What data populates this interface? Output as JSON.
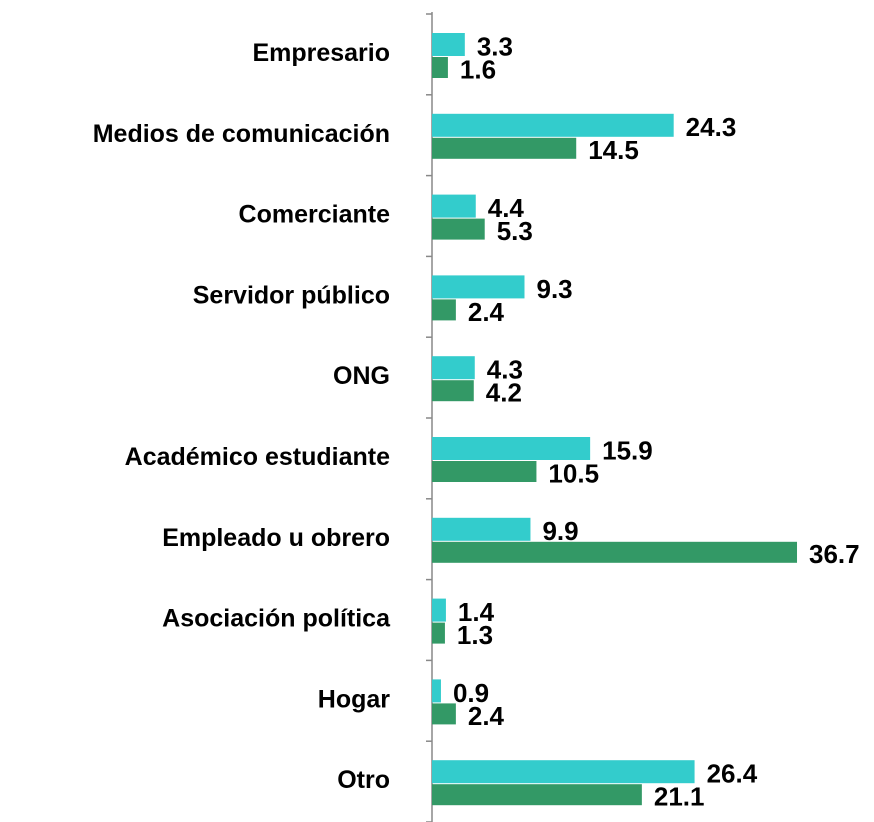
{
  "chart_data": {
    "type": "bar",
    "orientation": "horizontal",
    "categories": [
      "Empresario",
      "Medios de comunicación",
      "Comerciante",
      "Servidor público",
      "ONG",
      "Académico estudiante",
      "Empleado u obrero",
      "Asociación política",
      "Hogar",
      "Otro"
    ],
    "series": [
      {
        "color": "#33CCCC",
        "values": [
          3.3,
          24.3,
          4.4,
          9.3,
          4.3,
          15.9,
          9.9,
          1.4,
          0.9,
          26.4
        ]
      },
      {
        "color": "#339966",
        "values": [
          1.6,
          14.5,
          5.3,
          2.4,
          4.2,
          10.5,
          36.7,
          1.3,
          2.4,
          21.1
        ]
      }
    ],
    "xlim": [
      0,
      37
    ]
  }
}
